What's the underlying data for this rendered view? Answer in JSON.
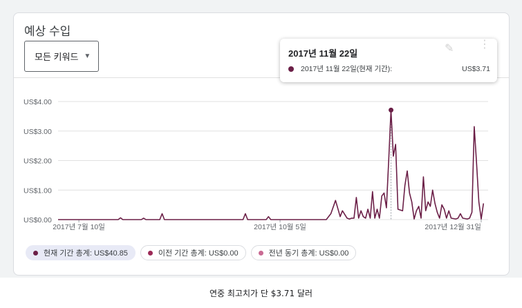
{
  "card": {
    "title": "예상 수입",
    "keyword_dropdown": "모든 키워드"
  },
  "tooltip": {
    "date": "2017년 11월 22일",
    "row_label": "2017년 11월 22일(현재 기간):",
    "row_value": "US$3.71"
  },
  "legend_chips": [
    {
      "label": "현재 기간 총계: US$40.85",
      "color": "#6b1f47",
      "active": true
    },
    {
      "label": "이전 기간 총계: US$0.00",
      "color": "#9c2a57",
      "active": false
    },
    {
      "label": "전년 동기 총계: US$0.00",
      "color": "#c96a93",
      "active": false
    }
  ],
  "caption": "연중 최고치가 단 $3.71 달러",
  "colors": {
    "series": "#6b1f47",
    "grid": "#e0e0e0"
  },
  "chart_data": {
    "type": "line",
    "ylim": [
      0,
      4
    ],
    "y_ticks": [
      {
        "value": 0,
        "label": "US$0.00"
      },
      {
        "value": 1,
        "label": "US$1.00"
      },
      {
        "value": 2,
        "label": "US$2.00"
      },
      {
        "value": 3,
        "label": "US$3.00"
      },
      {
        "value": 4,
        "label": "US$4.00"
      }
    ],
    "x_range": [
      "2017-07-01",
      "2018-01-03"
    ],
    "x_ticks": [
      {
        "date": "2017-07-10",
        "label": "2017년 7월 10일"
      },
      {
        "date": "2017-10-05",
        "label": "2017년 10월 5일"
      },
      {
        "date": "2017-12-31",
        "label": "2017년 12월 31일"
      }
    ],
    "series": [
      {
        "points": [
          [
            "2017-07-01",
            0
          ],
          [
            "2017-07-27",
            0
          ],
          [
            "2017-07-28",
            0.06
          ],
          [
            "2017-07-29",
            0
          ],
          [
            "2017-08-06",
            0
          ],
          [
            "2017-08-07",
            0.05
          ],
          [
            "2017-08-08",
            0
          ],
          [
            "2017-08-14",
            0
          ],
          [
            "2017-08-15",
            0.2
          ],
          [
            "2017-08-16",
            0
          ],
          [
            "2017-09-19",
            0
          ],
          [
            "2017-09-20",
            0.2
          ],
          [
            "2017-09-21",
            0
          ],
          [
            "2017-09-29",
            0
          ],
          [
            "2017-09-30",
            0.1
          ],
          [
            "2017-10-01",
            0
          ],
          [
            "2017-10-25",
            0
          ],
          [
            "2017-10-27",
            0.2
          ],
          [
            "2017-10-29",
            0.65
          ],
          [
            "2017-10-31",
            0.1
          ],
          [
            "2017-11-01",
            0.3
          ],
          [
            "2017-11-03",
            0.05
          ],
          [
            "2017-11-04",
            0.02
          ],
          [
            "2017-11-05",
            0.05
          ],
          [
            "2017-11-06",
            0.05
          ],
          [
            "2017-11-07",
            0.75
          ],
          [
            "2017-11-08",
            0.05
          ],
          [
            "2017-11-09",
            0.3
          ],
          [
            "2017-11-10",
            0.1
          ],
          [
            "2017-11-11",
            0.05
          ],
          [
            "2017-11-12",
            0.35
          ],
          [
            "2017-11-13",
            0.05
          ],
          [
            "2017-11-14",
            0.95
          ],
          [
            "2017-11-15",
            0.05
          ],
          [
            "2017-11-16",
            0.35
          ],
          [
            "2017-11-17",
            0.05
          ],
          [
            "2017-11-18",
            0.8
          ],
          [
            "2017-11-19",
            0.9
          ],
          [
            "2017-11-20",
            0.4
          ],
          [
            "2017-11-21",
            2.0
          ],
          [
            "2017-11-22",
            3.71
          ],
          [
            "2017-11-23",
            2.15
          ],
          [
            "2017-11-24",
            2.55
          ],
          [
            "2017-11-25",
            0.35
          ],
          [
            "2017-11-27",
            0.3
          ],
          [
            "2017-11-28",
            1.15
          ],
          [
            "2017-11-29",
            1.65
          ],
          [
            "2017-11-30",
            0.9
          ],
          [
            "2017-12-01",
            0.6
          ],
          [
            "2017-12-02",
            0.02
          ],
          [
            "2017-12-03",
            0.3
          ],
          [
            "2017-12-04",
            0.45
          ],
          [
            "2017-12-05",
            0.05
          ],
          [
            "2017-12-06",
            1.45
          ],
          [
            "2017-12-07",
            0.3
          ],
          [
            "2017-12-08",
            0.6
          ],
          [
            "2017-12-09",
            0.45
          ],
          [
            "2017-12-10",
            1.0
          ],
          [
            "2017-12-11",
            0.55
          ],
          [
            "2017-12-12",
            0.25
          ],
          [
            "2017-12-13",
            0.05
          ],
          [
            "2017-12-14",
            0.5
          ],
          [
            "2017-12-15",
            0.35
          ],
          [
            "2017-12-16",
            0.05
          ],
          [
            "2017-12-17",
            0.3
          ],
          [
            "2017-12-18",
            0.05
          ],
          [
            "2017-12-20",
            0.02
          ],
          [
            "2017-12-21",
            0.05
          ],
          [
            "2017-12-22",
            0.2
          ],
          [
            "2017-12-23",
            0.05
          ],
          [
            "2017-12-25",
            0.02
          ],
          [
            "2017-12-26",
            0.05
          ],
          [
            "2017-12-27",
            0.25
          ],
          [
            "2017-12-28",
            3.15
          ],
          [
            "2017-12-29",
            1.9
          ],
          [
            "2017-12-30",
            0.6
          ],
          [
            "2017-12-31",
            0.02
          ],
          [
            "2018-01-01",
            0.55
          ]
        ]
      }
    ],
    "highlight": {
      "date": "2017-11-22",
      "value": 3.71
    }
  }
}
